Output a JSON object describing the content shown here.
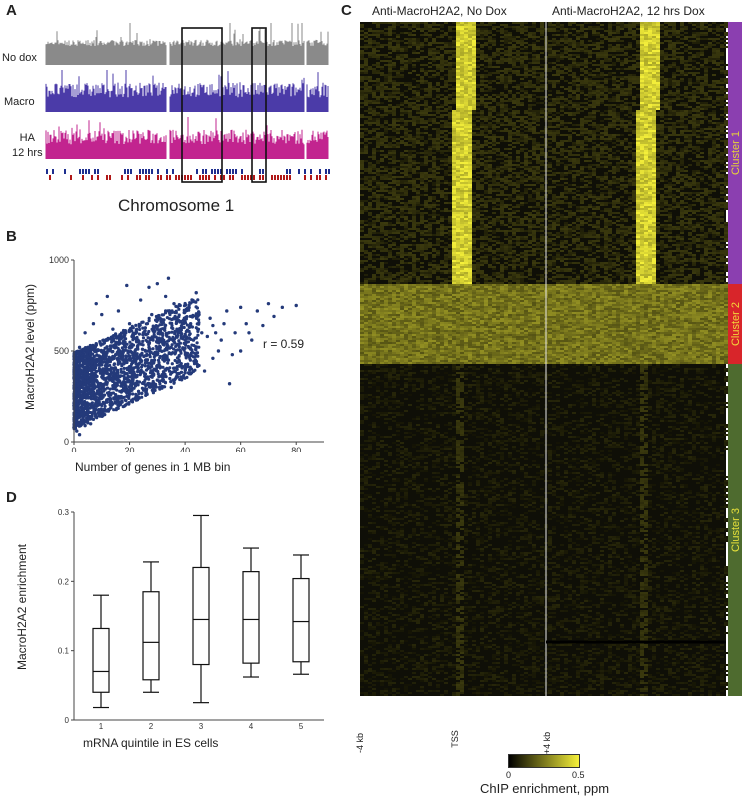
{
  "panel_a": {
    "letter": "A",
    "tracks": [
      {
        "label": "No dox",
        "color": "#8a8a8a"
      },
      {
        "label": "Macro",
        "color": "#4b3ba8"
      },
      {
        "label": "HA\n12 hrs",
        "color": "#c2248f"
      }
    ],
    "annotation_colors": [
      "#1e2f8f",
      "#b01818"
    ],
    "xlabel": "Chromosome 1"
  },
  "panel_b": {
    "letter": "B",
    "point_color": "#243a7a"
  },
  "panel_c": {
    "letter": "C",
    "title_left": "Anti-MacroH2A2, No Dox",
    "title_right": "Anti-MacroH2A2, 12 hrs Dox",
    "xticks": [
      "-4 kb",
      "TSS",
      "+4 kb"
    ],
    "clusters": [
      {
        "label": "Cluster 1",
        "color": "#8b3fb0",
        "label_color": "#e6d23a"
      },
      {
        "label": "Cluster 2",
        "color": "#d8252a",
        "label_color": "#f3d53a"
      },
      {
        "label": "Cluster 3",
        "color": "#4e6b2f",
        "label_color": "#e6e03a"
      }
    ],
    "colorbar": {
      "label": "ChIP enrichment, ppm",
      "min": "0",
      "max": "0.5",
      "colors": [
        "#000000",
        "#f5f03a"
      ]
    }
  },
  "panel_d": {
    "letter": "D"
  },
  "chart_data": [
    {
      "type": "scatter",
      "title": "",
      "xlabel": "Number of genes in 1 MB bin",
      "ylabel": "MacroH2A2 level (ppm)",
      "xlim": [
        0,
        90
      ],
      "ylim": [
        0,
        1000
      ],
      "xticks": [
        "0",
        "20",
        "40",
        "60",
        "80"
      ],
      "yticks": [
        "0",
        "500",
        "1000"
      ],
      "annotation": "r = 0.59",
      "points": [
        [
          0,
          80
        ],
        [
          0,
          200
        ],
        [
          0,
          350
        ],
        [
          1,
          420
        ],
        [
          1,
          150
        ],
        [
          2,
          300
        ],
        [
          2,
          520
        ],
        [
          3,
          250
        ],
        [
          3,
          450
        ],
        [
          4,
          380
        ],
        [
          4,
          600
        ],
        [
          5,
          330
        ],
        [
          5,
          520
        ],
        [
          6,
          280
        ],
        [
          6,
          480
        ],
        [
          7,
          410
        ],
        [
          7,
          650
        ],
        [
          8,
          360
        ],
        [
          8,
          540
        ],
        [
          9,
          300
        ],
        [
          10,
          460
        ],
        [
          10,
          700
        ],
        [
          12,
          400
        ],
        [
          12,
          560
        ],
        [
          14,
          350
        ],
        [
          14,
          620
        ],
        [
          15,
          480
        ],
        [
          16,
          720
        ],
        [
          18,
          430
        ],
        [
          18,
          580
        ],
        [
          20,
          390
        ],
        [
          20,
          650
        ],
        [
          22,
          500
        ],
        [
          24,
          450
        ],
        [
          24,
          780
        ],
        [
          25,
          600
        ],
        [
          27,
          520
        ],
        [
          28,
          700
        ],
        [
          30,
          480
        ],
        [
          30,
          620
        ],
        [
          32,
          560
        ],
        [
          33,
          800
        ],
        [
          35,
          520
        ],
        [
          36,
          680
        ],
        [
          38,
          600
        ],
        [
          40,
          560
        ],
        [
          40,
          720
        ],
        [
          42,
          650
        ],
        [
          44,
          520
        ],
        [
          45,
          700
        ],
        [
          46,
          600
        ],
        [
          48,
          580
        ],
        [
          50,
          640
        ],
        [
          52,
          500
        ],
        [
          55,
          720
        ],
        [
          56,
          320
        ],
        [
          58,
          600
        ],
        [
          60,
          740
        ],
        [
          62,
          650
        ],
        [
          64,
          560
        ],
        [
          66,
          720
        ],
        [
          70,
          760
        ],
        [
          72,
          690
        ],
        [
          75,
          740
        ],
        [
          80,
          750
        ],
        [
          45,
          420
        ],
        [
          40,
          380
        ],
        [
          35,
          300
        ],
        [
          30,
          340
        ],
        [
          50,
          460
        ],
        [
          26,
          280
        ],
        [
          38,
          420
        ],
        [
          60,
          500
        ],
        [
          22,
          320
        ],
        [
          17,
          250
        ],
        [
          13,
          220
        ],
        [
          11,
          180
        ],
        [
          9,
          150
        ],
        [
          19,
          270
        ],
        [
          28,
          380
        ],
        [
          34,
          450
        ],
        [
          42,
          480
        ],
        [
          53,
          560
        ],
        [
          47,
          390
        ],
        [
          57,
          480
        ],
        [
          63,
          600
        ],
        [
          68,
          640
        ],
        [
          3,
          120
        ],
        [
          6,
          100
        ],
        [
          8,
          200
        ],
        [
          1,
          60
        ],
        [
          2,
          40
        ],
        [
          4,
          90
        ],
        [
          5,
          180
        ],
        [
          15,
          260
        ],
        [
          16,
          330
        ],
        [
          21,
          440
        ],
        [
          23,
          530
        ],
        [
          26,
          590
        ],
        [
          29,
          450
        ],
        [
          31,
          520
        ],
        [
          37,
          580
        ],
        [
          39,
          650
        ],
        [
          41,
          610
        ],
        [
          43,
          560
        ],
        [
          49,
          680
        ],
        [
          51,
          600
        ],
        [
          54,
          650
        ],
        [
          27,
          850
        ],
        [
          30,
          870
        ],
        [
          19,
          860
        ],
        [
          34,
          900
        ],
        [
          12,
          800
        ],
        [
          8,
          760
        ],
        [
          44,
          820
        ],
        [
          36,
          760
        ]
      ]
    },
    {
      "type": "box",
      "title": "",
      "xlabel": "mRNA quintile in ES cells",
      "ylabel": "MacroH2A2 enrichment",
      "ylim": [
        0,
        0.3
      ],
      "yticks": [
        "0",
        "0.1",
        "0.2",
        "0.3"
      ],
      "categories": [
        "1",
        "2",
        "3",
        "4",
        "5"
      ],
      "boxes": [
        {
          "whisker_low": 0.018,
          "q1": 0.04,
          "median": 0.07,
          "q3": 0.132,
          "whisker_high": 0.18
        },
        {
          "whisker_low": 0.04,
          "q1": 0.058,
          "median": 0.112,
          "q3": 0.185,
          "whisker_high": 0.228
        },
        {
          "whisker_low": 0.025,
          "q1": 0.08,
          "median": 0.145,
          "q3": 0.22,
          "whisker_high": 0.295
        },
        {
          "whisker_low": 0.062,
          "q1": 0.082,
          "median": 0.145,
          "q3": 0.214,
          "whisker_high": 0.248
        },
        {
          "whisker_low": 0.066,
          "q1": 0.084,
          "median": 0.142,
          "q3": 0.204,
          "whisker_high": 0.238
        }
      ]
    }
  ]
}
